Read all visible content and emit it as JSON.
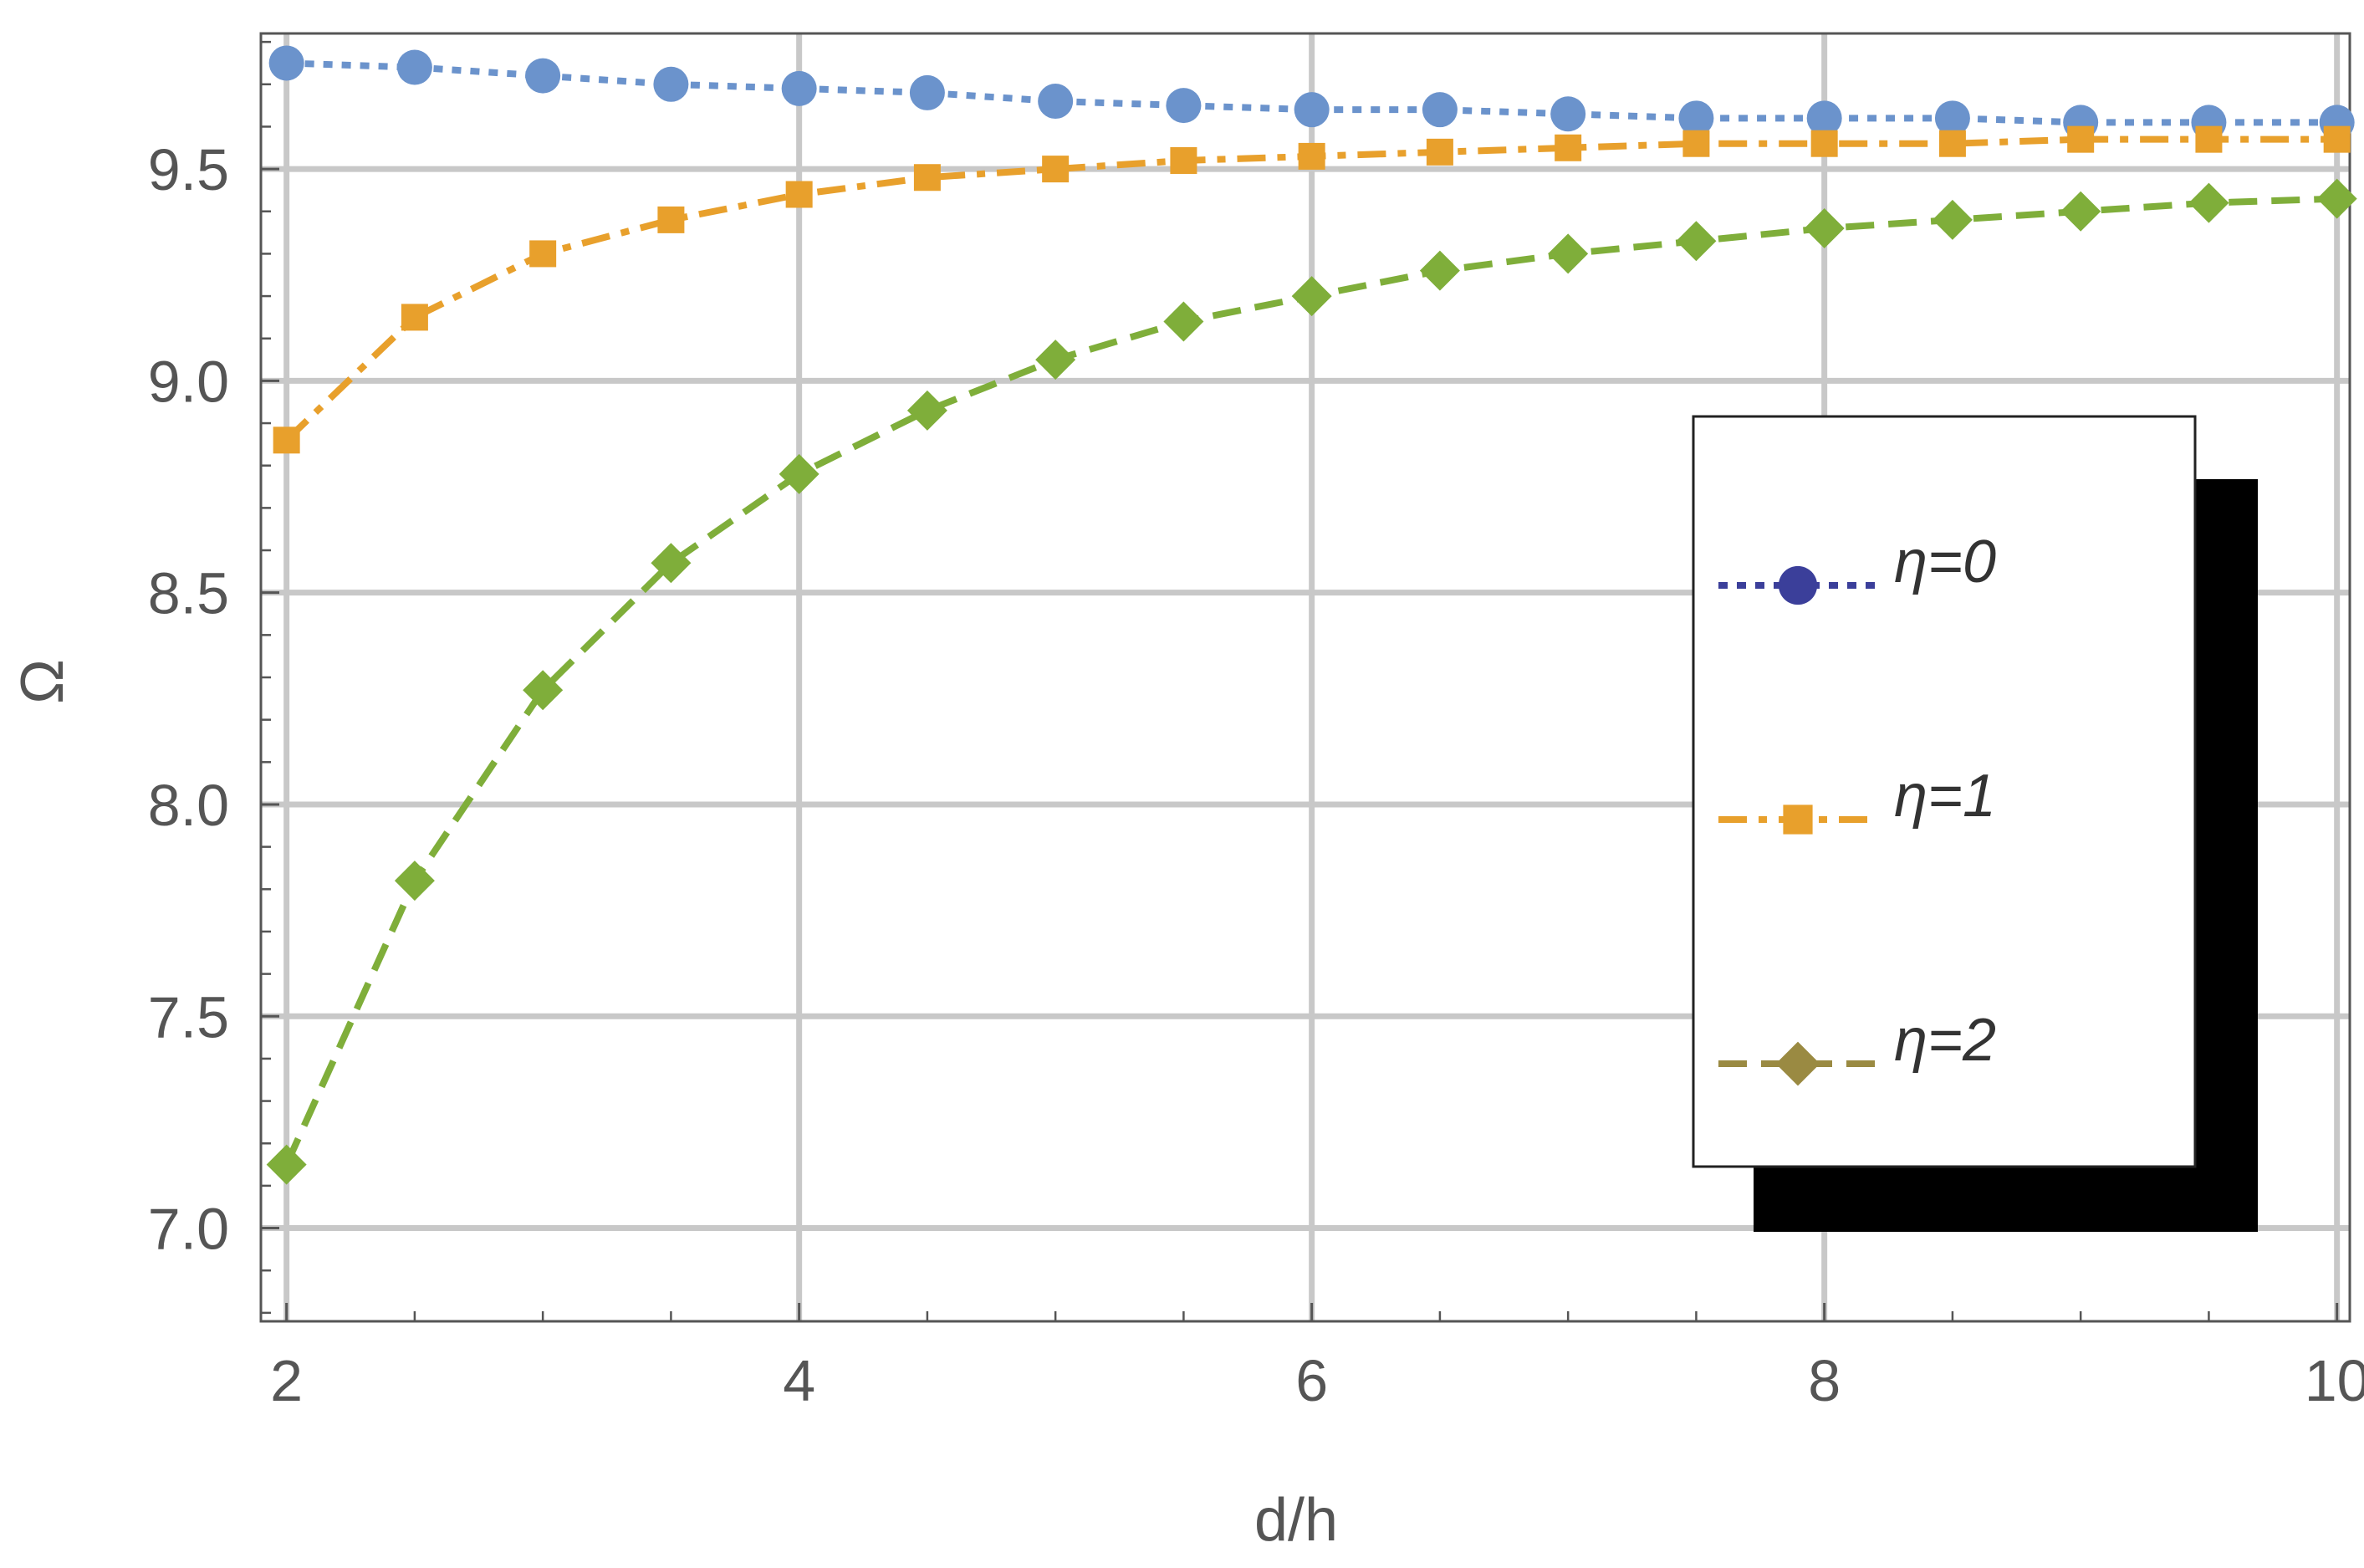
{
  "chart_data": {
    "type": "line",
    "title": "",
    "xlabel": "d/h",
    "ylabel": "Ω",
    "xlim": [
      1.9,
      10.05
    ],
    "ylim": [
      6.78,
      9.82
    ],
    "xticks": [
      2,
      4,
      6,
      8,
      10
    ],
    "xtick_labels": [
      "2",
      "4",
      "6",
      "8",
      "10"
    ],
    "yticks": [
      7.0,
      7.5,
      8.0,
      8.5,
      9.0,
      9.5
    ],
    "ytick_labels": [
      "7.0",
      "7.5",
      "8.0",
      "8.5",
      "9.0",
      "9.5"
    ],
    "grid": true,
    "legend_position": "right",
    "x": [
      2,
      2.5,
      3,
      3.5,
      4,
      4.5,
      5,
      5.5,
      6,
      6.5,
      7,
      7.5,
      8,
      8.5,
      9,
      9.5,
      10
    ],
    "series": [
      {
        "name": "η=0",
        "marker": "circle",
        "dash": "dotted",
        "color": "#6b93cc",
        "legend_color": "#3b3f9a",
        "values": [
          9.75,
          9.74,
          9.72,
          9.7,
          9.69,
          9.68,
          9.66,
          9.65,
          9.64,
          9.64,
          9.63,
          9.62,
          9.62,
          9.62,
          9.61,
          9.61,
          9.61
        ]
      },
      {
        "name": "η=1",
        "marker": "square",
        "dash": "dashdot",
        "color": "#e8a02c",
        "legend_color": "#e8a02c",
        "values": [
          8.86,
          9.15,
          9.3,
          9.38,
          9.44,
          9.48,
          9.5,
          9.52,
          9.53,
          9.54,
          9.55,
          9.56,
          9.56,
          9.56,
          9.57,
          9.57,
          9.57
        ]
      },
      {
        "name": "η=2",
        "marker": "diamond",
        "dash": "dashed",
        "color": "#7fae3a",
        "legend_color": "#9a8a42",
        "values": [
          7.15,
          7.82,
          8.27,
          8.57,
          8.78,
          8.93,
          9.05,
          9.14,
          9.2,
          9.26,
          9.3,
          9.33,
          9.36,
          9.38,
          9.4,
          9.42,
          9.43
        ]
      }
    ]
  }
}
